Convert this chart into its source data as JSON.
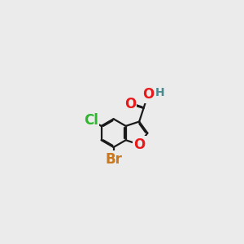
{
  "bg_color": "#ebebeb",
  "bond_color": "#1a1a1a",
  "bond_width": 1.6,
  "atom_colors": {
    "O": "#e8191a",
    "Cl": "#2db52d",
    "Br": "#c87820",
    "H": "#4a8a90",
    "C": "#1a1a1a"
  },
  "font_size_main": 12,
  "font_size_H": 10
}
